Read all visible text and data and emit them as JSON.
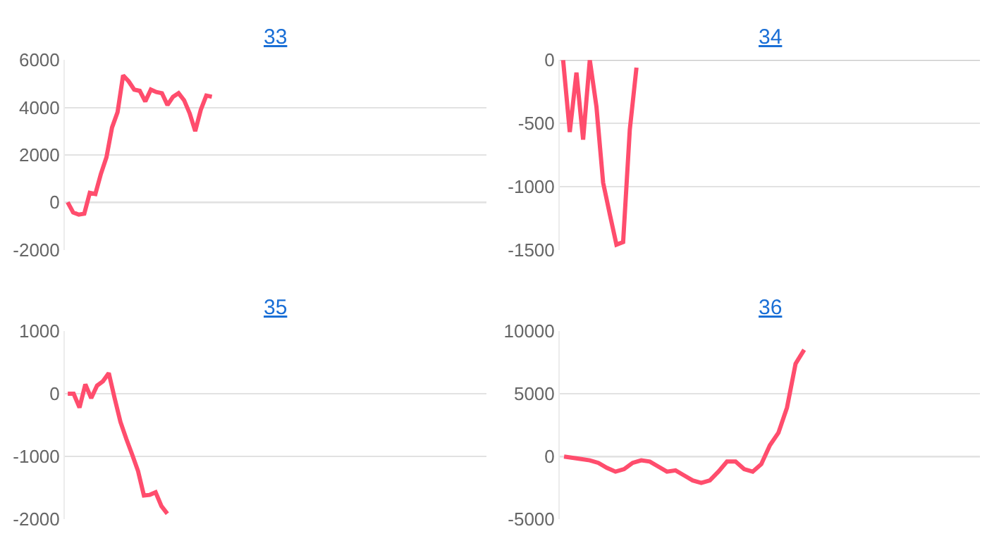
{
  "chart_data": [
    {
      "type": "line",
      "title": "33",
      "color": "#ff4d6d",
      "grid": "y",
      "tick_labels": "y",
      "marker": "none",
      "line_style": "solid",
      "ylim": [
        -2000,
        6000
      ],
      "yticks": [
        -2000,
        0,
        2000,
        4000,
        6000
      ],
      "categories": [
        null,
        null,
        null,
        null,
        null,
        null,
        null,
        null,
        null,
        null,
        null,
        null,
        null,
        null,
        null,
        null,
        null,
        null,
        null,
        null,
        null,
        null,
        null,
        null,
        null,
        null,
        null,
        null,
        null,
        null,
        null,
        null,
        null,
        null,
        null,
        null,
        null,
        null,
        null,
        null,
        null,
        null,
        null,
        null,
        null,
        null,
        null,
        null,
        null,
        null,
        null,
        null,
        null,
        null,
        null,
        null,
        null,
        null,
        null,
        null,
        null,
        null,
        null,
        null,
        null,
        null,
        null,
        null,
        null,
        null,
        null,
        null,
        null,
        null,
        null,
        null
      ],
      "values": [
        0,
        -430,
        -520,
        -480,
        400,
        350,
        1200,
        1900,
        3150,
        3800,
        5350,
        5100,
        4750,
        4700,
        4250,
        4750,
        4650,
        4600,
        4100,
        4450,
        4600,
        4300,
        3750,
        3000,
        3900,
        4500,
        4450,
        null,
        null,
        null,
        null,
        null,
        null,
        null,
        null,
        null,
        null,
        null,
        null,
        null,
        null,
        null,
        null,
        null,
        null,
        null,
        null,
        null,
        null,
        null,
        null,
        null,
        null,
        null,
        null,
        null,
        null,
        null,
        null,
        null,
        null,
        null,
        null,
        null,
        null,
        null,
        null,
        null,
        null,
        null,
        null,
        null,
        null,
        null,
        null,
        null
      ]
    },
    {
      "type": "line",
      "title": "34",
      "color": "#ff4d6d",
      "grid": "y",
      "tick_labels": "y",
      "marker": "none",
      "line_style": "solid",
      "ylim": [
        -1500,
        0
      ],
      "yticks": [
        -1500,
        -1000,
        -500,
        0
      ],
      "categories": [
        null,
        null,
        null,
        null,
        null,
        null,
        null,
        null,
        null,
        null,
        null,
        null,
        null,
        null,
        null,
        null,
        null,
        null,
        null,
        null,
        null,
        null,
        null,
        null,
        null,
        null,
        null,
        null,
        null,
        null,
        null,
        null,
        null,
        null,
        null,
        null,
        null,
        null,
        null,
        null,
        null,
        null,
        null,
        null,
        null,
        null,
        null,
        null,
        null,
        null,
        null,
        null,
        null,
        null,
        null,
        null,
        null,
        null,
        null,
        null,
        null,
        null,
        null
      ],
      "values": [
        0,
        -570,
        -100,
        -630,
        0,
        -370,
        -970,
        -1220,
        -1460,
        -1440,
        -550,
        -60,
        null,
        null,
        null,
        null,
        null,
        null,
        null,
        null,
        null,
        null,
        null,
        null,
        null,
        null,
        null,
        null,
        null,
        null,
        null,
        null,
        null,
        null,
        null,
        null,
        null,
        null,
        null,
        null,
        null,
        null,
        null,
        null,
        null,
        null,
        null,
        null,
        null,
        null,
        null,
        null,
        null,
        null,
        null,
        null,
        null,
        null,
        null,
        null,
        null,
        null,
        null
      ]
    },
    {
      "type": "line",
      "title": "35",
      "color": "#ff4d6d",
      "grid": "y",
      "tick_labels": "y",
      "marker": "none",
      "line_style": "solid",
      "ylim": [
        -2000,
        1000
      ],
      "yticks": [
        -2000,
        -1000,
        0,
        1000
      ],
      "categories": [
        null,
        null,
        null,
        null,
        null,
        null,
        null,
        null,
        null,
        null,
        null,
        null,
        null,
        null,
        null,
        null,
        null,
        null,
        null,
        null,
        null,
        null,
        null,
        null,
        null,
        null,
        null,
        null,
        null,
        null,
        null,
        null,
        null,
        null,
        null,
        null,
        null,
        null,
        null,
        null,
        null,
        null,
        null,
        null,
        null,
        null,
        null,
        null,
        null,
        null,
        null,
        null,
        null,
        null,
        null,
        null,
        null,
        null,
        null,
        null,
        null,
        null,
        null,
        null,
        null,
        null,
        null,
        null,
        null,
        null,
        null,
        null
      ],
      "values": [
        0,
        0,
        -220,
        150,
        -70,
        130,
        200,
        330,
        -70,
        -450,
        -720,
        -970,
        -1230,
        -1620,
        -1610,
        -1570,
        -1790,
        -1910,
        null,
        null,
        null,
        null,
        null,
        null,
        null,
        null,
        null,
        null,
        null,
        null,
        null,
        null,
        null,
        null,
        null,
        null,
        null,
        null,
        null,
        null,
        null,
        null,
        null,
        null,
        null,
        null,
        null,
        null,
        null,
        null,
        null,
        null,
        null,
        null,
        null,
        null,
        null,
        null,
        null,
        null,
        null,
        null,
        null,
        null,
        null,
        null,
        null,
        null,
        null,
        null,
        null,
        null
      ]
    },
    {
      "type": "line",
      "title": "36",
      "color": "#ff4d6d",
      "grid": "y",
      "tick_labels": "y",
      "marker": "none",
      "line_style": "solid",
      "ylim": [
        -5000,
        10000
      ],
      "yticks": [
        -5000,
        0,
        5000,
        10000
      ],
      "categories": [
        null,
        null,
        null,
        null,
        null,
        null,
        null,
        null,
        null,
        null,
        null,
        null,
        null,
        null,
        null,
        null,
        null,
        null,
        null,
        null,
        null,
        null,
        null,
        null,
        null,
        null,
        null,
        null,
        null,
        null,
        null,
        null,
        null,
        null,
        null,
        null,
        null,
        null,
        null,
        null,
        null,
        null,
        null,
        null,
        null,
        null,
        null,
        null,
        null
      ],
      "values": [
        0,
        -100,
        -200,
        -300,
        -500,
        -900,
        -1200,
        -1000,
        -500,
        -300,
        -400,
        -800,
        -1200,
        -1100,
        -1500,
        -1900,
        -2100,
        -1900,
        -1200,
        -400,
        -400,
        -1000,
        -1200,
        -600,
        900,
        1900,
        3900,
        7400,
        8500,
        null,
        null,
        null,
        null,
        null,
        null,
        null,
        null,
        null,
        null,
        null,
        null,
        null,
        null,
        null,
        null,
        null,
        null,
        null,
        null
      ]
    }
  ]
}
